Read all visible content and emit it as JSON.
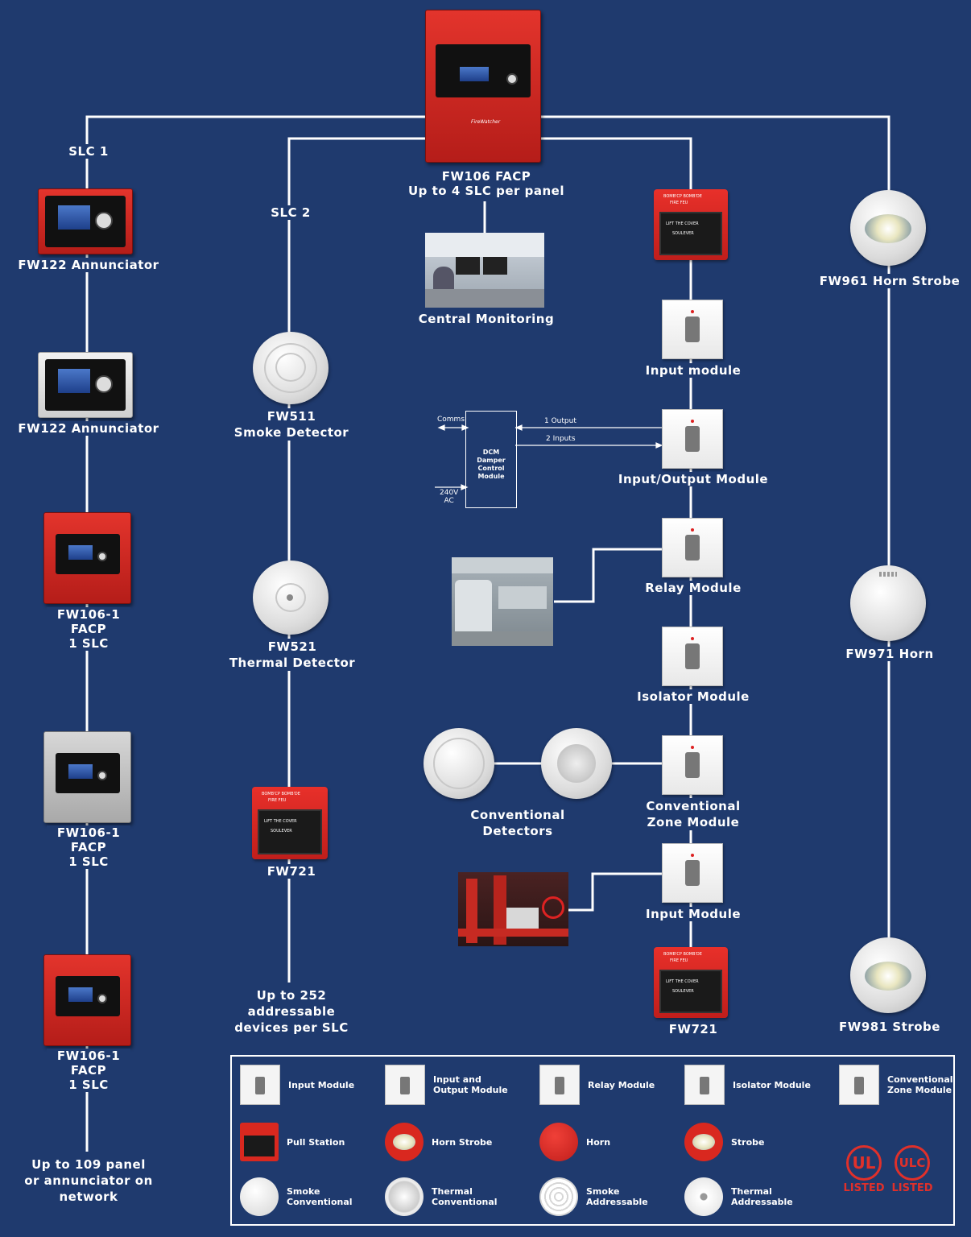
{
  "diagram": {
    "main_panel": {
      "label1": "FW106 FACP",
      "label2": "Up to 4 SLC per panel",
      "brand": "FireWatcher"
    },
    "slc1": {
      "label": "SLC 1",
      "devices": [
        {
          "label": "FW122 Annunciator"
        },
        {
          "label": "FW122 Annunciator"
        },
        {
          "label": "FW106-1\nFACP\n1 SLC"
        },
        {
          "label": "FW106-1\nFACP\n1 SLC"
        },
        {
          "label": "FW106-1\nFACP\n1 SLC"
        }
      ],
      "footer": "Up to 109 panel\nor annunciator on\nnetwork"
    },
    "slc2": {
      "label": "SLC 2",
      "devices": [
        {
          "label": "FW511\nSmoke Detector"
        },
        {
          "label": "FW521\nThermal Detector"
        },
        {
          "label": "FW721"
        }
      ],
      "footer": "Up to 252\naddressable\ndevices per SLC"
    },
    "central_monitoring": "Central Monitoring",
    "slc3": {
      "devices": [
        {
          "label": "Input module"
        },
        {
          "label": "Input/Output Module"
        },
        {
          "label": "Relay Module"
        },
        {
          "label": "Isolator Module"
        },
        {
          "label": "Conventional\nZone Module"
        },
        {
          "label": "Input Module"
        },
        {
          "label": "FW721"
        }
      ],
      "conventional_detectors": "Conventional\nDetectors",
      "dcm": {
        "title": "DCM\nDamper\nControl\nModule",
        "comms": "Comms",
        "output": "1 Output",
        "inputs": "2 Inputs",
        "power": "240V\nAC"
      }
    },
    "slc4": {
      "devices": [
        {
          "label": "FW961 Horn Strobe"
        },
        {
          "label": "FW971 Horn"
        },
        {
          "label": "FW981 Strobe"
        }
      ]
    },
    "pull_station_text": {
      "top": "BOMB'CP  BOMB'DE",
      "fire": "FIRE     FEU",
      "lift": "LIFT THE COVER",
      "sou": "SOULEVER"
    }
  },
  "legend": {
    "items": [
      {
        "label": "Input Module",
        "icon": "module-icon"
      },
      {
        "label": "Input and\nOutput Module",
        "icon": "module-icon"
      },
      {
        "label": "Relay Module",
        "icon": "module-icon"
      },
      {
        "label": "Isolator Module",
        "icon": "module-icon"
      },
      {
        "label": "Conventional\nZone Module",
        "icon": "module-icon"
      },
      {
        "label": "Pull Station",
        "icon": "pull-station-icon"
      },
      {
        "label": "Horn Strobe",
        "icon": "horn-strobe-icon"
      },
      {
        "label": "Horn",
        "icon": "horn-icon"
      },
      {
        "label": "Strobe",
        "icon": "strobe-icon"
      },
      {
        "label": "Smoke\nConventional",
        "icon": "smoke-conventional-icon"
      },
      {
        "label": "Thermal\nConventional",
        "icon": "thermal-conventional-icon"
      },
      {
        "label": "Smoke\nAddressable",
        "icon": "smoke-addressable-icon"
      },
      {
        "label": "Thermal\nAddressable",
        "icon": "thermal-addressable-icon"
      }
    ],
    "certifications": [
      {
        "mark": "UL",
        "text": "LISTED"
      },
      {
        "mark": "ULC",
        "text": "LISTED"
      }
    ]
  },
  "colors": {
    "background": "#1f3a6e",
    "line": "#ffffff",
    "panel_red": "#d9281f",
    "ul_red": "#e0302a"
  }
}
